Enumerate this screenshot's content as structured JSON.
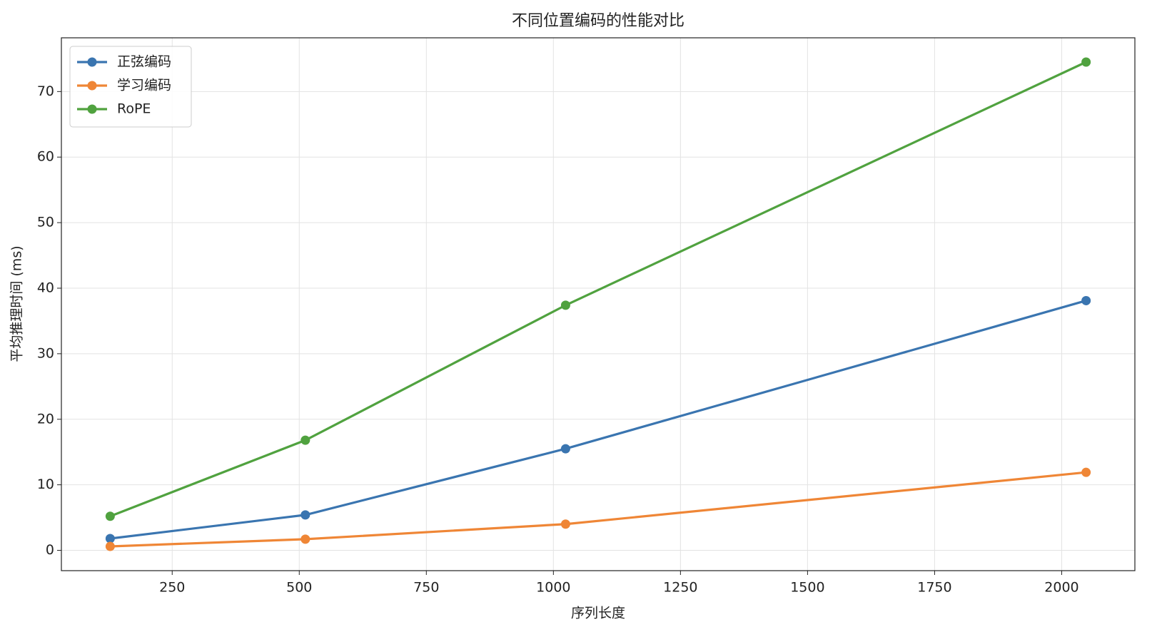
{
  "chart_data": {
    "type": "line",
    "title": "不同位置编码的性能对比",
    "x_label": "序列长度",
    "y_label": "平均推理时间 (ms)",
    "x": [
      128,
      512,
      1024,
      2048
    ],
    "series": [
      {
        "name": "正弦编码",
        "color": "#3a75b0",
        "values": [
          1.8,
          5.4,
          15.5,
          38.1
        ]
      },
      {
        "name": "学习编码",
        "color": "#ef8636",
        "values": [
          0.6,
          1.7,
          4.0,
          11.9
        ]
      },
      {
        "name": "RoPE",
        "color": "#50a23f",
        "values": [
          5.2,
          16.8,
          37.4,
          74.5
        ]
      }
    ],
    "xlim": [
      32,
      2144
    ],
    "ylim": [
      -3.1,
      78.2
    ],
    "xticks": [
      250,
      500,
      750,
      1000,
      1250,
      1500,
      1750,
      2000
    ],
    "yticks": [
      0,
      10,
      20,
      30,
      40,
      50,
      60,
      70
    ],
    "grid": true,
    "legend": "upper left"
  }
}
